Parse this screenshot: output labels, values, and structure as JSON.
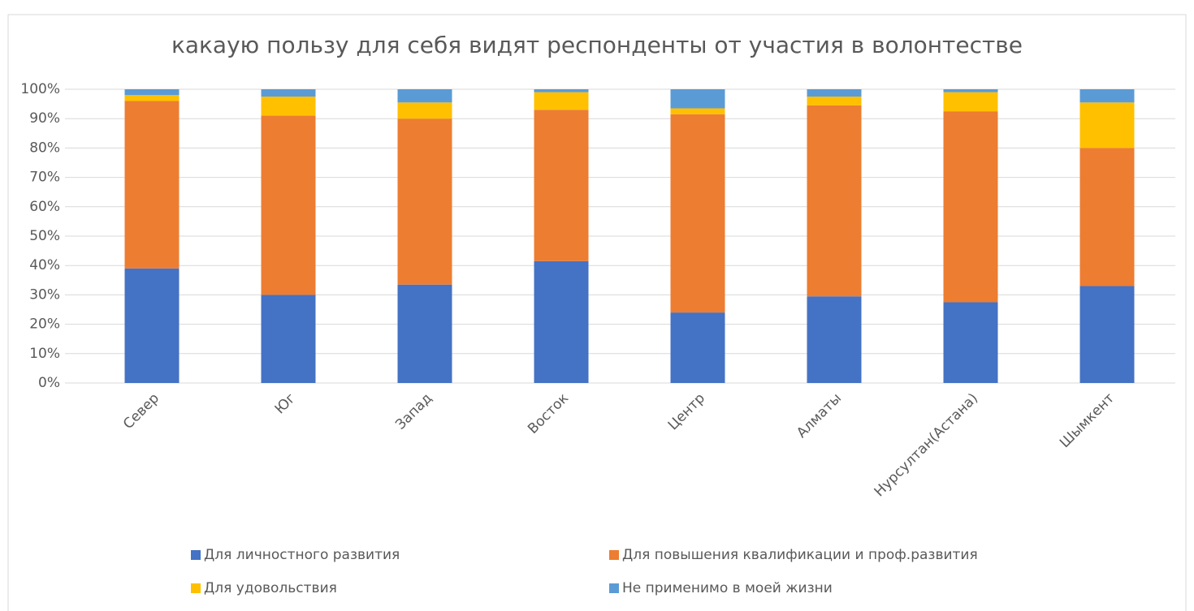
{
  "chart_data": {
    "type": "stacked_bar_100",
    "title": "какаую пользу для себя видят респонденты от участия в волонтестве",
    "categories": [
      "Север",
      "Юг",
      "Запад",
      "Восток",
      "Центр",
      "Алматы",
      "Нурсултан(Астана)",
      "Шымкент"
    ],
    "series": [
      {
        "name": "Для личностного развития",
        "color": "#4472c4",
        "values": [
          39,
          30,
          33.5,
          41.5,
          24,
          29.5,
          27.5,
          33
        ]
      },
      {
        "name": "Для повышения квалификации и проф.развития",
        "color": "#ed7d31",
        "values": [
          57,
          61,
          56.5,
          51.5,
          67.5,
          65,
          65,
          47
        ]
      },
      {
        "name": "Для удовольствия",
        "color": "#ffc000",
        "values": [
          2,
          6.5,
          5.5,
          6,
          2,
          3,
          6.5,
          15.5
        ]
      },
      {
        "name": "Не применимо в моей жизни",
        "color": "#5b9bd5",
        "values": [
          2,
          2.5,
          4.5,
          1,
          6.5,
          2.5,
          1,
          4.5
        ]
      }
    ],
    "ylim": [
      0,
      100
    ],
    "yticks": [
      {
        "value": 0,
        "label": "0%"
      },
      {
        "value": 10,
        "label": "10%"
      },
      {
        "value": 20,
        "label": "20%"
      },
      {
        "value": 30,
        "label": "30%"
      },
      {
        "value": 40,
        "label": "40%"
      },
      {
        "value": 50,
        "label": "50%"
      },
      {
        "value": 60,
        "label": "60%"
      },
      {
        "value": 70,
        "label": "70%"
      },
      {
        "value": 80,
        "label": "80%"
      },
      {
        "value": 90,
        "label": "90%"
      },
      {
        "value": 100,
        "label": "100%"
      }
    ],
    "grid": true,
    "legend": "bottom"
  }
}
